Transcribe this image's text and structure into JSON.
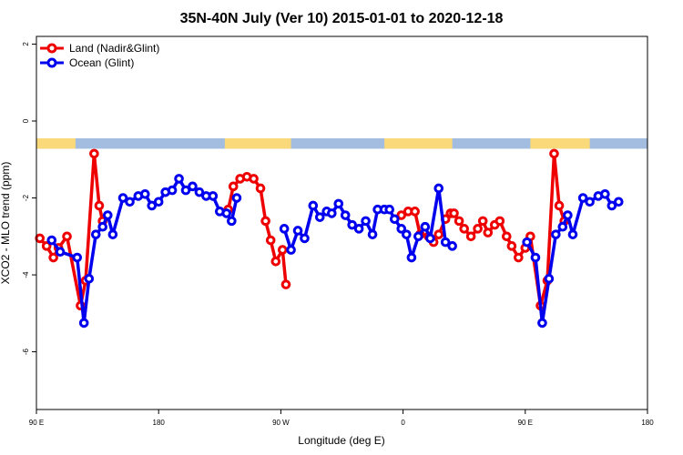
{
  "chart_data": {
    "type": "line",
    "title": "35N-40N July (Ver 10)   2015-01-01 to 2020-12-18",
    "xlabel": "Longitude (deg E)",
    "ylabel": "XCO2 - MLO trend (ppm)",
    "xlim": [
      90,
      450
    ],
    "ylim": [
      -7.5,
      2.2
    ],
    "x_ticks": [
      {
        "value": 90,
        "label": "90 E"
      },
      {
        "value": 162,
        "label": "180"
      },
      {
        "value": 234,
        "label": "90 W"
      },
      {
        "value": 306,
        "label": "0"
      },
      {
        "value": 378,
        "label": "90 E"
      },
      {
        "value": 450,
        "label": "180"
      }
    ],
    "y_ticks": [
      {
        "value": 2,
        "label": "2"
      },
      {
        "value": 0,
        "label": "0"
      },
      {
        "value": -2,
        "label": "-2"
      },
      {
        "value": -4,
        "label": "-4"
      },
      {
        "value": -6,
        "label": "-6"
      }
    ],
    "grid": false,
    "legend_position": "top-left",
    "land_mask_band": {
      "y_range": [
        -0.72,
        -0.45
      ],
      "ocean_color": "#a3bde0",
      "land_color": "#f9d97a",
      "land_x_ranges": [
        [
          90,
          113
        ],
        [
          201,
          240
        ],
        [
          295,
          335
        ],
        [
          381,
          416
        ]
      ]
    },
    "series": [
      {
        "name": "Land (Nadir&Glint)",
        "color": "#ee0000",
        "points": [
          [
            92,
            -3.05
          ],
          [
            96,
            -3.25
          ],
          [
            100,
            -3.55
          ],
          [
            103,
            -3.3
          ],
          [
            108,
            -3.0
          ],
          [
            116,
            -4.8
          ],
          [
            119,
            -4.15
          ],
          [
            124,
            -0.85
          ],
          [
            127,
            -2.2
          ],
          [
            129,
            -2.6
          ],
          [
            203,
            -2.3
          ],
          [
            206,
            -1.7
          ],
          [
            210,
            -1.5
          ],
          [
            214,
            -1.45
          ],
          [
            218,
            -1.5
          ],
          [
            222,
            -1.75
          ],
          [
            225,
            -2.6
          ],
          [
            228,
            -3.1
          ],
          [
            231,
            -3.65
          ],
          [
            235,
            -3.35
          ],
          [
            237,
            -4.25
          ],
          [
            305,
            -2.45
          ],
          [
            309,
            -2.35
          ],
          [
            313,
            -2.35
          ],
          [
            316,
            -2.95
          ],
          [
            321,
            -3.0
          ],
          [
            324,
            -3.15
          ],
          [
            327,
            -2.95
          ],
          [
            331,
            -2.55
          ],
          [
            334,
            -2.4
          ],
          [
            336,
            -2.4
          ],
          [
            339,
            -2.6
          ],
          [
            342,
            -2.8
          ],
          [
            346,
            -3.0
          ],
          [
            350,
            -2.8
          ],
          [
            353,
            -2.6
          ],
          [
            356,
            -2.9
          ],
          [
            360,
            -2.7
          ],
          [
            363,
            -2.6
          ],
          [
            367,
            -3.0
          ],
          [
            370,
            -3.25
          ],
          [
            374,
            -3.55
          ],
          [
            378,
            -3.3
          ],
          [
            381,
            -3.0
          ],
          [
            387,
            -4.8
          ],
          [
            391,
            -4.15
          ],
          [
            395,
            -0.85
          ],
          [
            398,
            -2.2
          ],
          [
            401,
            -2.6
          ]
        ]
      },
      {
        "name": "Ocean (Glint)",
        "color": "#0000ee",
        "points": [
          [
            99,
            -3.1
          ],
          [
            104,
            -3.4
          ],
          [
            114,
            -3.55
          ],
          [
            118,
            -5.25
          ],
          [
            121,
            -4.1
          ],
          [
            125,
            -2.95
          ],
          [
            129,
            -2.75
          ],
          [
            132,
            -2.45
          ],
          [
            135,
            -2.95
          ],
          [
            141,
            -2.0
          ],
          [
            145,
            -2.1
          ],
          [
            150,
            -1.95
          ],
          [
            154,
            -1.9
          ],
          [
            158,
            -2.2
          ],
          [
            162,
            -2.1
          ],
          [
            166,
            -1.85
          ],
          [
            170,
            -1.8
          ],
          [
            174,
            -1.5
          ],
          [
            178,
            -1.8
          ],
          [
            182,
            -1.7
          ],
          [
            186,
            -1.85
          ],
          [
            190,
            -1.95
          ],
          [
            194,
            -1.95
          ],
          [
            198,
            -2.35
          ],
          [
            202,
            -2.4
          ],
          [
            205,
            -2.6
          ],
          [
            208,
            -2.0
          ],
          [
            236,
            -2.8
          ],
          [
            240,
            -3.35
          ],
          [
            244,
            -2.85
          ],
          [
            248,
            -3.05
          ],
          [
            253,
            -2.2
          ],
          [
            257,
            -2.5
          ],
          [
            261,
            -2.35
          ],
          [
            264,
            -2.4
          ],
          [
            268,
            -2.15
          ],
          [
            272,
            -2.45
          ],
          [
            276,
            -2.7
          ],
          [
            280,
            -2.8
          ],
          [
            284,
            -2.6
          ],
          [
            288,
            -2.95
          ],
          [
            291,
            -2.3
          ],
          [
            295,
            -2.3
          ],
          [
            298,
            -2.3
          ],
          [
            301,
            -2.55
          ],
          [
            305,
            -2.8
          ],
          [
            308,
            -2.95
          ],
          [
            311,
            -3.55
          ],
          [
            315,
            -3.0
          ],
          [
            319,
            -2.75
          ],
          [
            322,
            -3.05
          ],
          [
            327,
            -1.75
          ],
          [
            331,
            -3.15
          ],
          [
            335,
            -3.25
          ],
          [
            379,
            -3.15
          ],
          [
            384,
            -3.55
          ],
          [
            388,
            -5.25
          ],
          [
            392,
            -4.1
          ],
          [
            396,
            -2.95
          ],
          [
            400,
            -2.75
          ],
          [
            403,
            -2.45
          ],
          [
            406,
            -2.95
          ],
          [
            412,
            -2.0
          ],
          [
            416,
            -2.1
          ],
          [
            421,
            -1.95
          ],
          [
            425,
            -1.9
          ],
          [
            429,
            -2.2
          ],
          [
            433,
            -2.1
          ]
        ]
      }
    ]
  }
}
